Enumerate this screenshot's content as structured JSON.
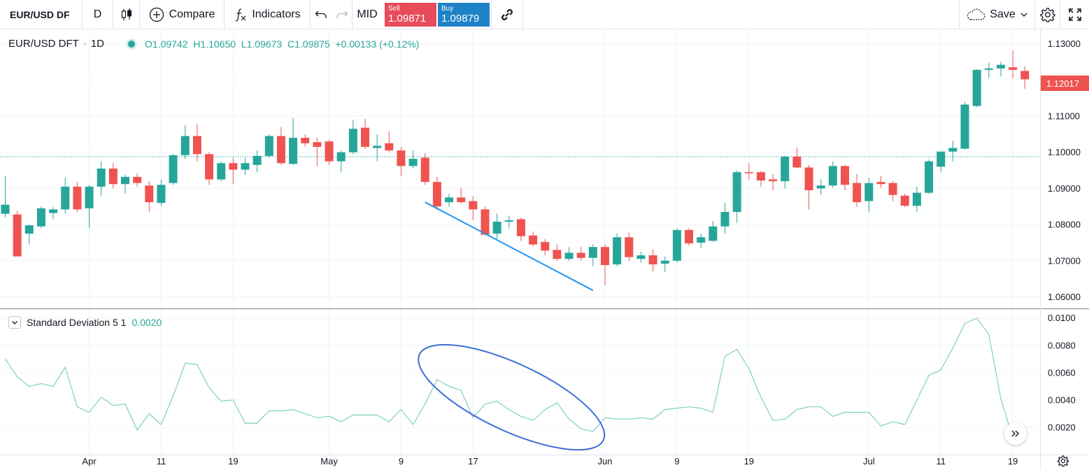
{
  "toolbar": {
    "symbol": "EUR/USD DF",
    "interval": "D",
    "compare_label": "Compare",
    "indicators_label": "Indicators",
    "mid_label": "MID",
    "sell_label": "Sell",
    "sell_price": "1.09871",
    "buy_label": "Buy",
    "buy_price": "1.09879",
    "save_label": "Save"
  },
  "legend": {
    "symbol": "EUR/USD DFT",
    "sep": "·",
    "interval": "1D",
    "ohlc": "O1.09742  H1.10650  L1.09673  C1.09875  +0.00133 (+0.12%)"
  },
  "indicator": {
    "name": "Standard Deviation 5 1",
    "value": "0.0020"
  },
  "last_price_label": "1.12017",
  "chart_data": [
    {
      "type": "candlestick",
      "title": "EUR/USD DFT · 1D",
      "ylim": [
        1.057,
        1.134
      ],
      "y_ticks": [
        1.06,
        1.07,
        1.08,
        1.09,
        1.1,
        1.11,
        1.12,
        1.13
      ],
      "y_tick_labels": [
        "1.06000",
        "1.07000",
        "1.08000",
        "1.09000",
        "1.10000",
        "1.11000",
        "1.12000",
        "1.13000"
      ],
      "x_tick_labels": [
        {
          "label": "Apr",
          "index": 7
        },
        {
          "label": "11",
          "index": 13
        },
        {
          "label": "19",
          "index": 19
        },
        {
          "label": "May",
          "index": 27
        },
        {
          "label": "9",
          "index": 33
        },
        {
          "label": "17",
          "index": 39
        },
        {
          "label": "Jun",
          "index": 50
        },
        {
          "label": "9",
          "index": 56
        },
        {
          "label": "19",
          "index": 62
        },
        {
          "label": "Jul",
          "index": 72
        },
        {
          "label": "11",
          "index": 78
        },
        {
          "label": "19",
          "index": 84
        }
      ],
      "last_price": 1.12017,
      "dotted_line_price": 1.0988,
      "candles": [
        {
          "o": 1.083,
          "h": 1.0935,
          "l": 1.082,
          "c": 1.0855
        },
        {
          "o": 1.0828,
          "h": 1.0838,
          "l": 1.0712,
          "c": 1.0712
        },
        {
          "o": 1.0775,
          "h": 1.08,
          "l": 1.0745,
          "c": 1.0798
        },
        {
          "o": 1.0795,
          "h": 1.085,
          "l": 1.079,
          "c": 1.0845
        },
        {
          "o": 1.0832,
          "h": 1.0848,
          "l": 1.0815,
          "c": 1.0842
        },
        {
          "o": 1.0842,
          "h": 1.093,
          "l": 1.083,
          "c": 1.0905
        },
        {
          "o": 1.0905,
          "h": 1.0918,
          "l": 1.0835,
          "c": 1.0842
        },
        {
          "o": 1.0845,
          "h": 1.091,
          "l": 1.079,
          "c": 1.0905
        },
        {
          "o": 1.0905,
          "h": 1.0975,
          "l": 1.088,
          "c": 1.0955
        },
        {
          "o": 1.0955,
          "h": 1.097,
          "l": 1.09,
          "c": 1.0912
        },
        {
          "o": 1.0912,
          "h": 1.0938,
          "l": 1.0885,
          "c": 1.0932
        },
        {
          "o": 1.0932,
          "h": 1.0942,
          "l": 1.0905,
          "c": 1.0915
        },
        {
          "o": 1.0908,
          "h": 1.092,
          "l": 1.0835,
          "c": 1.0862
        },
        {
          "o": 1.086,
          "h": 1.0925,
          "l": 1.0852,
          "c": 1.091
        },
        {
          "o": 1.0915,
          "h": 1.0995,
          "l": 1.091,
          "c": 1.0992
        },
        {
          "o": 1.0992,
          "h": 1.1075,
          "l": 1.0982,
          "c": 1.1045
        },
        {
          "o": 1.1045,
          "h": 1.1078,
          "l": 1.0975,
          "c": 1.0995
        },
        {
          "o": 1.0995,
          "h": 1.1,
          "l": 1.091,
          "c": 1.0925
        },
        {
          "o": 1.0925,
          "h": 1.0975,
          "l": 1.092,
          "c": 1.097
        },
        {
          "o": 1.097,
          "h": 1.0985,
          "l": 1.0912,
          "c": 1.0952
        },
        {
          "o": 1.0952,
          "h": 1.0985,
          "l": 1.0938,
          "c": 1.097
        },
        {
          "o": 1.0965,
          "h": 1.1005,
          "l": 1.0945,
          "c": 1.099
        },
        {
          "o": 1.099,
          "h": 1.105,
          "l": 1.0985,
          "c": 1.1045
        },
        {
          "o": 1.1045,
          "h": 1.107,
          "l": 1.0965,
          "c": 1.097
        },
        {
          "o": 1.0968,
          "h": 1.1095,
          "l": 1.0965,
          "c": 1.104
        },
        {
          "o": 1.104,
          "h": 1.105,
          "l": 1.1015,
          "c": 1.1025
        },
        {
          "o": 1.1028,
          "h": 1.104,
          "l": 1.0962,
          "c": 1.1015
        },
        {
          "o": 1.103,
          "h": 1.1035,
          "l": 1.0965,
          "c": 1.0975
        },
        {
          "o": 1.0975,
          "h": 1.1005,
          "l": 1.0945,
          "c": 1.1
        },
        {
          "o": 1.1,
          "h": 1.109,
          "l": 1.0995,
          "c": 1.1065
        },
        {
          "o": 1.1068,
          "h": 1.1092,
          "l": 1.101,
          "c": 1.1015
        },
        {
          "o": 1.1012,
          "h": 1.105,
          "l": 1.0975,
          "c": 1.1018
        },
        {
          "o": 1.1025,
          "h": 1.1058,
          "l": 1.1,
          "c": 1.1005
        },
        {
          "o": 1.1005,
          "h": 1.1015,
          "l": 1.0935,
          "c": 1.0962
        },
        {
          "o": 1.0962,
          "h": 1.1005,
          "l": 1.0955,
          "c": 1.0982
        },
        {
          "o": 1.0985,
          "h": 1.0998,
          "l": 1.091,
          "c": 1.0918
        },
        {
          "o": 1.0918,
          "h": 1.0932,
          "l": 1.084,
          "c": 1.085
        },
        {
          "o": 1.0862,
          "h": 1.0885,
          "l": 1.085,
          "c": 1.0875
        },
        {
          "o": 1.0875,
          "h": 1.0902,
          "l": 1.0858,
          "c": 1.0862
        },
        {
          "o": 1.0865,
          "h": 1.0878,
          "l": 1.0812,
          "c": 1.0842
        },
        {
          "o": 1.0842,
          "h": 1.085,
          "l": 1.077,
          "c": 1.0772
        },
        {
          "o": 1.0775,
          "h": 1.083,
          "l": 1.076,
          "c": 1.0808
        },
        {
          "o": 1.0808,
          "h": 1.0825,
          "l": 1.079,
          "c": 1.0812
        },
        {
          "o": 1.0815,
          "h": 1.082,
          "l": 1.0755,
          "c": 1.0768
        },
        {
          "o": 1.077,
          "h": 1.078,
          "l": 1.074,
          "c": 1.0745
        },
        {
          "o": 1.0752,
          "h": 1.076,
          "l": 1.0715,
          "c": 1.0728
        },
        {
          "o": 1.073,
          "h": 1.0745,
          "l": 1.07,
          "c": 1.0705
        },
        {
          "o": 1.0705,
          "h": 1.0738,
          "l": 1.07,
          "c": 1.0722
        },
        {
          "o": 1.0722,
          "h": 1.0738,
          "l": 1.07,
          "c": 1.0708
        },
        {
          "o": 1.0708,
          "h": 1.0745,
          "l": 1.0685,
          "c": 1.0738
        },
        {
          "o": 1.0738,
          "h": 1.0745,
          "l": 1.0632,
          "c": 1.0688
        },
        {
          "o": 1.069,
          "h": 1.0775,
          "l": 1.0685,
          "c": 1.0765
        },
        {
          "o": 1.0765,
          "h": 1.0778,
          "l": 1.07,
          "c": 1.071
        },
        {
          "o": 1.0705,
          "h": 1.0725,
          "l": 1.0695,
          "c": 1.0715
        },
        {
          "o": 1.0715,
          "h": 1.0732,
          "l": 1.067,
          "c": 1.069
        },
        {
          "o": 1.0692,
          "h": 1.0712,
          "l": 1.0668,
          "c": 1.07
        },
        {
          "o": 1.07,
          "h": 1.079,
          "l": 1.0695,
          "c": 1.0785
        },
        {
          "o": 1.0785,
          "h": 1.079,
          "l": 1.0742,
          "c": 1.0748
        },
        {
          "o": 1.075,
          "h": 1.0775,
          "l": 1.0735,
          "c": 1.0765
        },
        {
          "o": 1.0755,
          "h": 1.081,
          "l": 1.0752,
          "c": 1.0795
        },
        {
          "o": 1.0795,
          "h": 1.086,
          "l": 1.0775,
          "c": 1.0835
        },
        {
          "o": 1.0835,
          "h": 1.095,
          "l": 1.0805,
          "c": 1.0945
        },
        {
          "o": 1.0945,
          "h": 1.097,
          "l": 1.0925,
          "c": 1.0942
        },
        {
          "o": 1.0945,
          "h": 1.0948,
          "l": 1.0905,
          "c": 1.0922
        },
        {
          "o": 1.0925,
          "h": 1.094,
          "l": 1.0895,
          "c": 1.092
        },
        {
          "o": 1.092,
          "h": 1.099,
          "l": 1.09,
          "c": 1.0988
        },
        {
          "o": 1.0988,
          "h": 1.1012,
          "l": 1.0955,
          "c": 1.0958
        },
        {
          "o": 1.0958,
          "h": 1.0965,
          "l": 1.0842,
          "c": 1.0895
        },
        {
          "o": 1.09,
          "h": 1.0925,
          "l": 1.0882,
          "c": 1.0908
        },
        {
          "o": 1.0908,
          "h": 1.0975,
          "l": 1.0902,
          "c": 1.0962
        },
        {
          "o": 1.0962,
          "h": 1.0965,
          "l": 1.0895,
          "c": 1.091
        },
        {
          "o": 1.0915,
          "h": 1.094,
          "l": 1.085,
          "c": 1.0862
        },
        {
          "o": 1.0865,
          "h": 1.093,
          "l": 1.0835,
          "c": 1.0915
        },
        {
          "o": 1.0918,
          "h": 1.0935,
          "l": 1.0902,
          "c": 1.0912
        },
        {
          "o": 1.0915,
          "h": 1.092,
          "l": 1.0865,
          "c": 1.0882
        },
        {
          "o": 1.088,
          "h": 1.0885,
          "l": 1.0848,
          "c": 1.0852
        },
        {
          "o": 1.0852,
          "h": 1.0905,
          "l": 1.0835,
          "c": 1.0888
        },
        {
          "o": 1.0888,
          "h": 1.098,
          "l": 1.0885,
          "c": 1.0975
        },
        {
          "o": 1.096,
          "h": 1.1002,
          "l": 1.0945,
          "c": 1.1002
        },
        {
          "o": 1.1002,
          "h": 1.1032,
          "l": 1.0975,
          "c": 1.1012
        },
        {
          "o": 1.101,
          "h": 1.114,
          "l": 1.1008,
          "c": 1.1132
        },
        {
          "o": 1.1128,
          "h": 1.123,
          "l": 1.1125,
          "c": 1.1228
        },
        {
          "o": 1.1228,
          "h": 1.1248,
          "l": 1.1205,
          "c": 1.1232
        },
        {
          "o": 1.1232,
          "h": 1.125,
          "l": 1.121,
          "c": 1.1242
        },
        {
          "o": 1.1235,
          "h": 1.1282,
          "l": 1.1205,
          "c": 1.1228
        },
        {
          "o": 1.1225,
          "h": 1.1238,
          "l": 1.1175,
          "c": 1.1202
        }
      ]
    },
    {
      "type": "line",
      "title": "Standard Deviation 5 1",
      "ylim": [
        0.0,
        0.0106
      ],
      "y_ticks": [
        0.002,
        0.004,
        0.006,
        0.008,
        0.01
      ],
      "y_tick_labels": [
        "0.0020",
        "0.0040",
        "0.0060",
        "0.0080",
        "0.0100"
      ],
      "series": [
        {
          "values": [
            0.007,
            0.0057,
            0.005,
            0.0052,
            0.005,
            0.0064,
            0.0035,
            0.0031,
            0.0042,
            0.0036,
            0.0037,
            0.0018,
            0.003,
            0.0022,
            0.0043,
            0.0067,
            0.0066,
            0.0049,
            0.0039,
            0.004,
            0.0023,
            0.0023,
            0.0032,
            0.0032,
            0.0033,
            0.003,
            0.0027,
            0.0028,
            0.0024,
            0.0029,
            0.0029,
            0.0029,
            0.0024,
            0.0033,
            0.0022,
            0.0037,
            0.0055,
            0.005,
            0.0047,
            0.0027,
            0.0037,
            0.0039,
            0.0033,
            0.0028,
            0.0025,
            0.0033,
            0.0038,
            0.0026,
            0.0019,
            0.0017,
            0.0027,
            0.0026,
            0.0026,
            0.0027,
            0.0026,
            0.0033,
            0.0034,
            0.0035,
            0.0034,
            0.0031,
            0.0072,
            0.0077,
            0.0063,
            0.0042,
            0.0025,
            0.0026,
            0.0033,
            0.0035,
            0.0035,
            0.0028,
            0.0031,
            0.0031,
            0.0031,
            0.0021,
            0.0024,
            0.0022,
            0.004,
            0.0058,
            0.0062,
            0.0078,
            0.0096,
            0.01,
            0.0088,
            0.0041,
            0.0012
          ]
        }
      ]
    }
  ]
}
